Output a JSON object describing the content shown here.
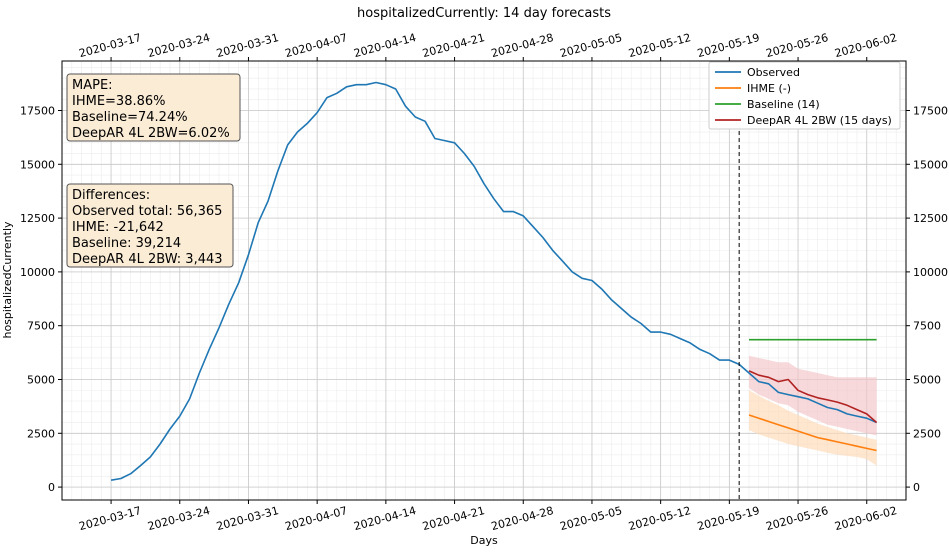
{
  "chart_data": {
    "type": "line",
    "title": "hospitalizedCurrently: 14 day forecasts",
    "xlabel": "Days",
    "ylabel": "hospitalizedCurrently",
    "xlim": [
      "2020-03-12",
      "2020-06-06"
    ],
    "ylim": [
      -600,
      19800
    ],
    "x_ticks": [
      "2020-03-17",
      "2020-03-24",
      "2020-03-31",
      "2020-04-07",
      "2020-04-14",
      "2020-04-21",
      "2020-04-28",
      "2020-05-05",
      "2020-05-12",
      "2020-05-19",
      "2020-05-26",
      "2020-06-02"
    ],
    "y_ticks": [
      0,
      2500,
      5000,
      7500,
      10000,
      12500,
      15000,
      17500
    ],
    "y_tick_labels": [
      "0",
      "2500",
      "5000",
      "7500",
      "10000",
      "12500",
      "15000",
      "17500"
    ],
    "grid": true,
    "forecast_start": "2020-05-20",
    "legend_position": "top-right",
    "series": [
      {
        "name": "Observed",
        "color": "#1f77b4",
        "points": [
          [
            "2020-03-17",
            320
          ],
          [
            "2020-03-18",
            400
          ],
          [
            "2020-03-19",
            620
          ],
          [
            "2020-03-20",
            1000
          ],
          [
            "2020-03-21",
            1400
          ],
          [
            "2020-03-22",
            2000
          ],
          [
            "2020-03-23",
            2700
          ],
          [
            "2020-03-24",
            3300
          ],
          [
            "2020-03-25",
            4100
          ],
          [
            "2020-03-26",
            5300
          ],
          [
            "2020-03-27",
            6400
          ],
          [
            "2020-03-28",
            7400
          ],
          [
            "2020-03-29",
            8500
          ],
          [
            "2020-03-30",
            9500
          ],
          [
            "2020-03-31",
            10800
          ],
          [
            "2020-04-01",
            12300
          ],
          [
            "2020-04-02",
            13300
          ],
          [
            "2020-04-03",
            14700
          ],
          [
            "2020-04-04",
            15900
          ],
          [
            "2020-04-05",
            16500
          ],
          [
            "2020-04-06",
            16900
          ],
          [
            "2020-04-07",
            17400
          ],
          [
            "2020-04-08",
            18100
          ],
          [
            "2020-04-09",
            18300
          ],
          [
            "2020-04-10",
            18600
          ],
          [
            "2020-04-11",
            18700
          ],
          [
            "2020-04-12",
            18700
          ],
          [
            "2020-04-13",
            18800
          ],
          [
            "2020-04-14",
            18700
          ],
          [
            "2020-04-15",
            18500
          ],
          [
            "2020-04-16",
            17700
          ],
          [
            "2020-04-17",
            17200
          ],
          [
            "2020-04-18",
            17000
          ],
          [
            "2020-04-19",
            16200
          ],
          [
            "2020-04-20",
            16100
          ],
          [
            "2020-04-21",
            16000
          ],
          [
            "2020-04-22",
            15500
          ],
          [
            "2020-04-23",
            14900
          ],
          [
            "2020-04-24",
            14100
          ],
          [
            "2020-04-25",
            13400
          ],
          [
            "2020-04-26",
            12800
          ],
          [
            "2020-04-27",
            12800
          ],
          [
            "2020-04-28",
            12600
          ],
          [
            "2020-04-29",
            12100
          ],
          [
            "2020-04-30",
            11600
          ],
          [
            "2020-05-01",
            11000
          ],
          [
            "2020-05-02",
            10500
          ],
          [
            "2020-05-03",
            10000
          ],
          [
            "2020-05-04",
            9700
          ],
          [
            "2020-05-05",
            9600
          ],
          [
            "2020-05-06",
            9200
          ],
          [
            "2020-05-07",
            8700
          ],
          [
            "2020-05-08",
            8300
          ],
          [
            "2020-05-09",
            7900
          ],
          [
            "2020-05-10",
            7600
          ],
          [
            "2020-05-11",
            7200
          ],
          [
            "2020-05-12",
            7200
          ],
          [
            "2020-05-13",
            7100
          ],
          [
            "2020-05-14",
            6900
          ],
          [
            "2020-05-15",
            6700
          ],
          [
            "2020-05-16",
            6400
          ],
          [
            "2020-05-17",
            6200
          ],
          [
            "2020-05-18",
            5900
          ],
          [
            "2020-05-19",
            5900
          ],
          [
            "2020-05-20",
            5700
          ],
          [
            "2020-05-21",
            5300
          ],
          [
            "2020-05-22",
            4900
          ],
          [
            "2020-05-23",
            4800
          ],
          [
            "2020-05-24",
            4400
          ],
          [
            "2020-05-25",
            4300
          ],
          [
            "2020-05-26",
            4200
          ],
          [
            "2020-05-27",
            4100
          ],
          [
            "2020-05-28",
            3900
          ],
          [
            "2020-05-29",
            3700
          ],
          [
            "2020-05-30",
            3600
          ],
          [
            "2020-05-31",
            3400
          ],
          [
            "2020-06-01",
            3300
          ],
          [
            "2020-06-02",
            3200
          ],
          [
            "2020-06-03",
            3000
          ]
        ]
      },
      {
        "name": "IHME (-)",
        "color": "#ff7f0e",
        "band_color": "#fdd9b5",
        "points": [
          [
            "2020-05-21",
            3350
          ],
          [
            "2020-05-22",
            3200
          ],
          [
            "2020-05-23",
            3050
          ],
          [
            "2020-05-24",
            2900
          ],
          [
            "2020-05-25",
            2750
          ],
          [
            "2020-05-26",
            2600
          ],
          [
            "2020-05-27",
            2450
          ],
          [
            "2020-05-28",
            2300
          ],
          [
            "2020-05-29",
            2200
          ],
          [
            "2020-05-30",
            2100
          ],
          [
            "2020-05-31",
            2000
          ],
          [
            "2020-06-01",
            1900
          ],
          [
            "2020-06-02",
            1800
          ],
          [
            "2020-06-03",
            1700
          ]
        ],
        "lower": [
          2650,
          2450,
          2300,
          2150,
          2000,
          1900,
          1800,
          1700,
          1600,
          1500,
          1450,
          1400,
          1300,
          1000
        ],
        "upper": [
          4500,
          4250,
          4000,
          3800,
          3550,
          3350,
          3150,
          2950,
          2800,
          2650,
          2500,
          2400,
          2300,
          2200
        ]
      },
      {
        "name": "Baseline (14)",
        "color": "#2ca02c",
        "points": [
          [
            "2020-05-21",
            6850
          ],
          [
            "2020-05-22",
            6850
          ],
          [
            "2020-05-23",
            6850
          ],
          [
            "2020-05-24",
            6850
          ],
          [
            "2020-05-25",
            6850
          ],
          [
            "2020-05-26",
            6850
          ],
          [
            "2020-05-27",
            6850
          ],
          [
            "2020-05-28",
            6850
          ],
          [
            "2020-05-29",
            6850
          ],
          [
            "2020-05-30",
            6850
          ],
          [
            "2020-05-31",
            6850
          ],
          [
            "2020-06-01",
            6850
          ],
          [
            "2020-06-02",
            6850
          ],
          [
            "2020-06-03",
            6850
          ]
        ]
      },
      {
        "name": "DeepAR 4L 2BW (15 days)",
        "color": "#b22222",
        "band_color": "#f2c4c8",
        "points": [
          [
            "2020-05-21",
            5400
          ],
          [
            "2020-05-22",
            5200
          ],
          [
            "2020-05-23",
            5100
          ],
          [
            "2020-05-24",
            4900
          ],
          [
            "2020-05-25",
            5000
          ],
          [
            "2020-05-26",
            4500
          ],
          [
            "2020-05-27",
            4300
          ],
          [
            "2020-05-28",
            4150
          ],
          [
            "2020-05-29",
            4050
          ],
          [
            "2020-05-30",
            3950
          ],
          [
            "2020-05-31",
            3800
          ],
          [
            "2020-06-01",
            3600
          ],
          [
            "2020-06-02",
            3400
          ],
          [
            "2020-06-03",
            3000
          ]
        ],
        "lower": [
          4600,
          4300,
          4100,
          3900,
          3800,
          3500,
          3300,
          3100,
          2900,
          2800,
          2700,
          2600,
          2500,
          2400
        ],
        "upper": [
          6100,
          6000,
          5900,
          5800,
          5800,
          5500,
          5400,
          5300,
          5200,
          5100,
          5100,
          5100,
          5100,
          5100
        ]
      }
    ],
    "annotations": {
      "mape": [
        "MAPE:",
        "IHME=38.86%",
        "Baseline=74.24%",
        "DeepAR 4L 2BW=6.02%"
      ],
      "differences": [
        "Differences:",
        "Observed total: 56,365",
        "IHME: -21,642",
        "Baseline: 39,214",
        "DeepAR 4L 2BW: 3,443"
      ]
    }
  },
  "colors": {
    "annotation_box_fill": "#fbecd6",
    "annotation_box_border": "#555555",
    "grid": "#d9d9d9"
  }
}
